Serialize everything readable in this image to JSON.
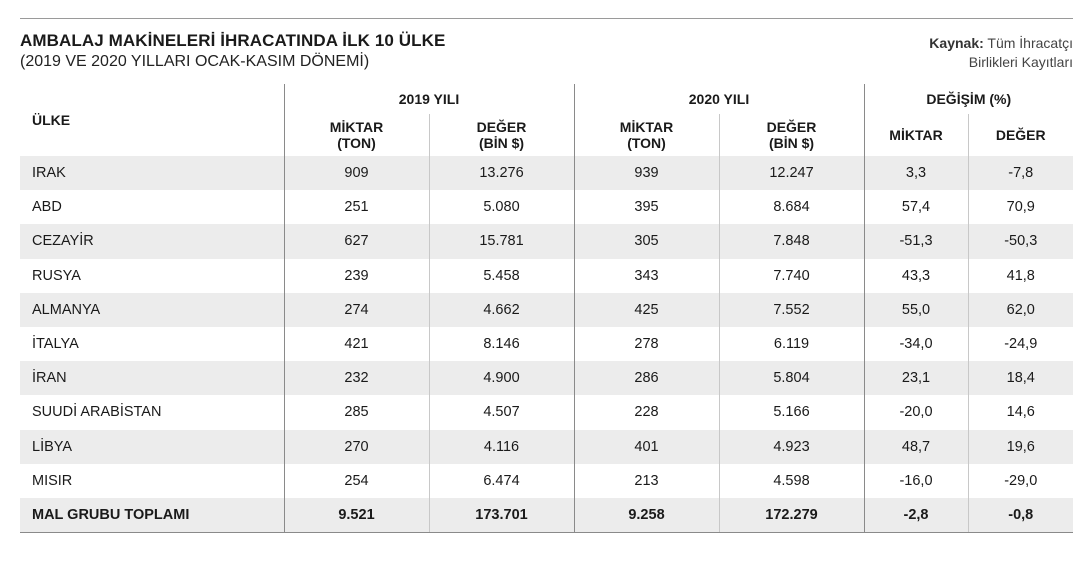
{
  "title": "AMBALAJ MAKİNELERİ İHRACATINDA İLK 10 ÜLKE",
  "subtitle": "(2019 VE 2020 YILLARI OCAK-KASIM DÖNEMİ)",
  "source": {
    "label": "Kaynak:",
    "line1": "Tüm İhracatçı",
    "line2": "Birlikleri Kayıtları"
  },
  "headers": {
    "country": "ÜLKE",
    "year2019": "2019 YILI",
    "year2020": "2020 YILI",
    "change": "DEĞİŞİM (%)",
    "miktar_l1": "MİKTAR",
    "miktar_l2": "(TON)",
    "deger_l1": "DEĞER",
    "deger_l2": "(BİN $)",
    "ch_miktar": "MİKTAR",
    "ch_deger": "DEĞER"
  },
  "rows": [
    {
      "country": "IRAK",
      "m19": "909",
      "d19": "13.276",
      "m20": "939",
      "d20": "12.247",
      "cm": "3,3",
      "cd": "-7,8"
    },
    {
      "country": "ABD",
      "m19": "251",
      "d19": "5.080",
      "m20": "395",
      "d20": "8.684",
      "cm": "57,4",
      "cd": "70,9"
    },
    {
      "country": "CEZAYİR",
      "m19": "627",
      "d19": "15.781",
      "m20": "305",
      "d20": "7.848",
      "cm": "-51,3",
      "cd": "-50,3"
    },
    {
      "country": "RUSYA",
      "m19": "239",
      "d19": "5.458",
      "m20": "343",
      "d20": "7.740",
      "cm": "43,3",
      "cd": "41,8"
    },
    {
      "country": "ALMANYA",
      "m19": "274",
      "d19": "4.662",
      "m20": "425",
      "d20": "7.552",
      "cm": "55,0",
      "cd": "62,0"
    },
    {
      "country": "İTALYA",
      "m19": "421",
      "d19": "8.146",
      "m20": "278",
      "d20": "6.119",
      "cm": "-34,0",
      "cd": "-24,9"
    },
    {
      "country": "İRAN",
      "m19": "232",
      "d19": "4.900",
      "m20": "286",
      "d20": "5.804",
      "cm": "23,1",
      "cd": "18,4"
    },
    {
      "country": "SUUDİ ARABİSTAN",
      "m19": "285",
      "d19": "4.507",
      "m20": "228",
      "d20": "5.166",
      "cm": "-20,0",
      "cd": "14,6"
    },
    {
      "country": "LİBYA",
      "m19": "270",
      "d19": "4.116",
      "m20": "401",
      "d20": "4.923",
      "cm": "48,7",
      "cd": "19,6"
    },
    {
      "country": "MISIR",
      "m19": "254",
      "d19": "6.474",
      "m20": "213",
      "d20": "4.598",
      "cm": "-16,0",
      "cd": "-29,0"
    }
  ],
  "total": {
    "country": "MAL GRUBU TOPLAMI",
    "m19": "9.521",
    "d19": "173.701",
    "m20": "9.258",
    "d20": "172.279",
    "cm": "-2,8",
    "cd": "-0,8"
  },
  "colors": {
    "stripe": "#ececec",
    "rule": "#8a8a8a"
  }
}
